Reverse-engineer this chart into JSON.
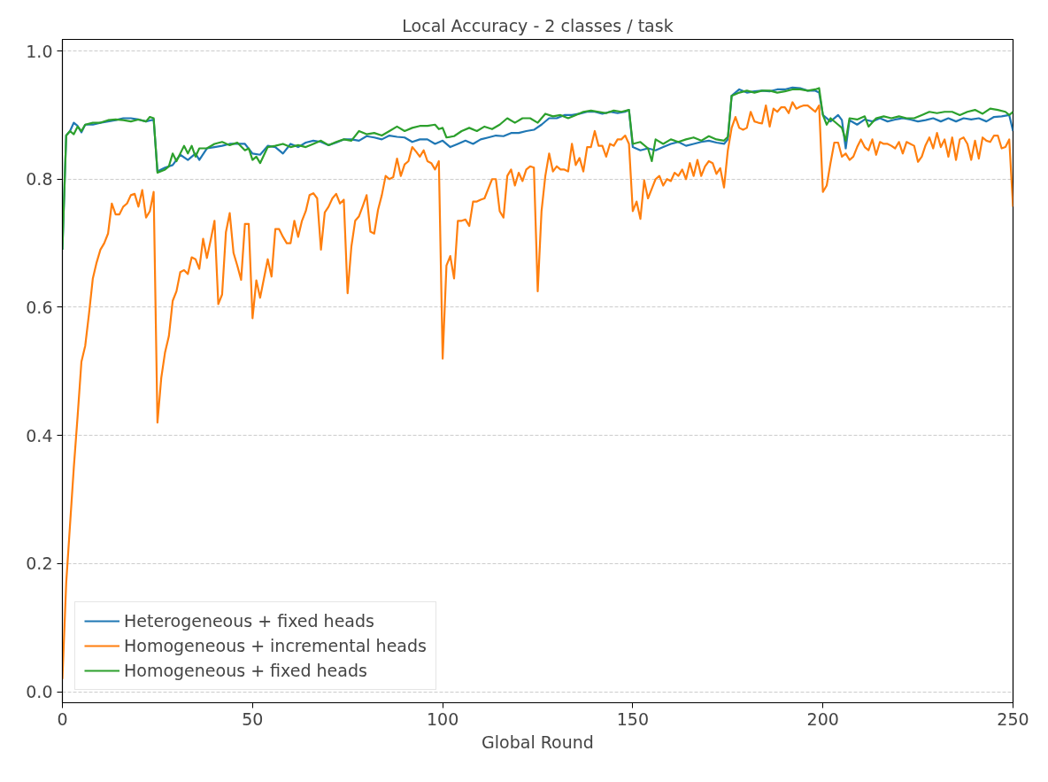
{
  "chart_data": {
    "type": "line",
    "title": "Local Accuracy - 2 classes / task",
    "xlabel": "Global Round",
    "xlim": [
      0,
      250
    ],
    "xticks": [
      0,
      50,
      100,
      150,
      200,
      250
    ],
    "ylim": [
      -0.017,
      1.018
    ],
    "yticks": [
      {
        "value": 0,
        "label": "0.0"
      },
      {
        "value": 0.2,
        "label": "0.2"
      },
      {
        "value": 0.4,
        "label": "0.4"
      },
      {
        "value": 0.6,
        "label": "0.6"
      },
      {
        "value": 0.8,
        "label": "0.8"
      },
      {
        "value": 1.0,
        "label": "1.0"
      }
    ],
    "grid": "y",
    "legend": "bottom left",
    "line_style": "solid",
    "series": [
      {
        "name": "Heterogeneous + fixed heads",
        "color": "#1f77b4",
        "x": [
          0,
          1,
          2,
          3,
          4,
          5,
          6,
          8,
          10,
          12,
          14,
          16,
          18,
          20,
          22,
          24,
          25,
          27,
          29,
          31,
          33,
          35,
          36,
          38,
          40,
          42,
          44,
          46,
          48,
          50,
          52,
          54,
          56,
          58,
          60,
          62,
          64,
          66,
          68,
          70,
          72,
          74,
          76,
          78,
          80,
          82,
          84,
          86,
          88,
          90,
          92,
          94,
          96,
          98,
          100,
          102,
          104,
          106,
          108,
          110,
          112,
          114,
          116,
          118,
          120,
          122,
          124,
          126,
          128,
          130,
          132,
          134,
          136,
          138,
          140,
          142,
          144,
          146,
          148,
          149,
          150,
          152,
          154,
          156,
          158,
          160,
          162,
          164,
          166,
          168,
          170,
          172,
          174,
          175,
          176,
          178,
          180,
          182,
          184,
          186,
          188,
          190,
          192,
          194,
          196,
          198,
          199,
          200,
          202,
          204,
          205,
          206,
          207,
          209,
          211,
          213,
          215,
          217,
          219,
          221,
          223,
          225,
          227,
          229,
          231,
          233,
          235,
          237,
          239,
          241,
          243,
          245,
          247,
          249,
          250
        ],
        "values": [
          0.69,
          0.868,
          0.875,
          0.888,
          0.883,
          0.873,
          0.885,
          0.885,
          0.888,
          0.89,
          0.892,
          0.895,
          0.895,
          0.893,
          0.89,
          0.893,
          0.812,
          0.818,
          0.822,
          0.838,
          0.83,
          0.84,
          0.83,
          0.848,
          0.85,
          0.852,
          0.855,
          0.855,
          0.855,
          0.84,
          0.838,
          0.852,
          0.85,
          0.84,
          0.855,
          0.85,
          0.857,
          0.86,
          0.858,
          0.853,
          0.857,
          0.862,
          0.862,
          0.86,
          0.867,
          0.865,
          0.862,
          0.868,
          0.866,
          0.865,
          0.858,
          0.862,
          0.862,
          0.855,
          0.86,
          0.85,
          0.855,
          0.86,
          0.855,
          0.862,
          0.865,
          0.868,
          0.867,
          0.872,
          0.872,
          0.875,
          0.877,
          0.885,
          0.895,
          0.895,
          0.9,
          0.9,
          0.902,
          0.905,
          0.905,
          0.902,
          0.905,
          0.903,
          0.905,
          0.908,
          0.85,
          0.845,
          0.848,
          0.845,
          0.85,
          0.855,
          0.858,
          0.852,
          0.855,
          0.858,
          0.86,
          0.857,
          0.855,
          0.862,
          0.93,
          0.94,
          0.935,
          0.937,
          0.938,
          0.937,
          0.94,
          0.94,
          0.943,
          0.942,
          0.938,
          0.938,
          0.935,
          0.9,
          0.89,
          0.9,
          0.892,
          0.848,
          0.892,
          0.885,
          0.893,
          0.89,
          0.895,
          0.89,
          0.893,
          0.895,
          0.893,
          0.89,
          0.892,
          0.895,
          0.89,
          0.895,
          0.89,
          0.895,
          0.893,
          0.895,
          0.89,
          0.897,
          0.898,
          0.9,
          0.875
        ]
      },
      {
        "name": "Homogeneous + incremental heads",
        "color": "#ff7f0e",
        "x": [
          0,
          1,
          2,
          3,
          4,
          5,
          6,
          7,
          8,
          9,
          10,
          11,
          12,
          13,
          14,
          15,
          16,
          17,
          18,
          19,
          20,
          21,
          22,
          23,
          24,
          25,
          26,
          27,
          28,
          29,
          30,
          31,
          32,
          33,
          34,
          35,
          36,
          37,
          38,
          39,
          40,
          41,
          42,
          43,
          44,
          45,
          46,
          47,
          48,
          49,
          50,
          51,
          52,
          53,
          54,
          55,
          56,
          57,
          58,
          59,
          60,
          61,
          62,
          63,
          64,
          65,
          66,
          67,
          68,
          69,
          70,
          71,
          72,
          73,
          74,
          75,
          76,
          77,
          78,
          79,
          80,
          81,
          82,
          83,
          84,
          85,
          86,
          87,
          88,
          89,
          90,
          91,
          92,
          93,
          94,
          95,
          96,
          97,
          98,
          99,
          100,
          101,
          102,
          103,
          104,
          105,
          106,
          107,
          108,
          109,
          110,
          111,
          112,
          113,
          114,
          115,
          116,
          117,
          118,
          119,
          120,
          121,
          122,
          123,
          124,
          125,
          126,
          127,
          128,
          129,
          130,
          131,
          132,
          133,
          134,
          135,
          136,
          137,
          138,
          139,
          140,
          141,
          142,
          143,
          144,
          145,
          146,
          147,
          148,
          149,
          150,
          151,
          152,
          153,
          154,
          155,
          156,
          157,
          158,
          159,
          160,
          161,
          162,
          163,
          164,
          165,
          166,
          167,
          168,
          169,
          170,
          171,
          172,
          173,
          174,
          175,
          176,
          177,
          178,
          179,
          180,
          181,
          182,
          183,
          184,
          185,
          186,
          187,
          188,
          189,
          190,
          191,
          192,
          193,
          194,
          195,
          196,
          197,
          198,
          199,
          200,
          201,
          202,
          203,
          204,
          205,
          206,
          207,
          208,
          209,
          210,
          211,
          212,
          213,
          214,
          215,
          216,
          217,
          218,
          219,
          220,
          221,
          222,
          223,
          224,
          225,
          226,
          227,
          228,
          229,
          230,
          231,
          232,
          233,
          234,
          235,
          236,
          237,
          238,
          239,
          240,
          241,
          242,
          243,
          244,
          245,
          246,
          247,
          248,
          249,
          250
        ],
        "values": [
          0.02,
          0.17,
          0.26,
          0.35,
          0.43,
          0.515,
          0.54,
          0.59,
          0.645,
          0.67,
          0.69,
          0.7,
          0.715,
          0.762,
          0.745,
          0.745,
          0.757,
          0.762,
          0.775,
          0.777,
          0.757,
          0.783,
          0.74,
          0.75,
          0.78,
          0.42,
          0.49,
          0.53,
          0.555,
          0.61,
          0.625,
          0.655,
          0.658,
          0.652,
          0.678,
          0.675,
          0.66,
          0.707,
          0.677,
          0.705,
          0.735,
          0.605,
          0.62,
          0.717,
          0.747,
          0.685,
          0.665,
          0.643,
          0.73,
          0.73,
          0.583,
          0.642,
          0.615,
          0.645,
          0.675,
          0.648,
          0.722,
          0.722,
          0.71,
          0.7,
          0.7,
          0.735,
          0.71,
          0.735,
          0.75,
          0.775,
          0.778,
          0.77,
          0.69,
          0.748,
          0.757,
          0.77,
          0.777,
          0.762,
          0.768,
          0.622,
          0.695,
          0.735,
          0.742,
          0.758,
          0.775,
          0.718,
          0.715,
          0.752,
          0.775,
          0.805,
          0.8,
          0.803,
          0.832,
          0.805,
          0.823,
          0.828,
          0.85,
          0.843,
          0.835,
          0.845,
          0.828,
          0.825,
          0.815,
          0.828,
          0.52,
          0.665,
          0.68,
          0.645,
          0.735,
          0.735,
          0.737,
          0.727,
          0.765,
          0.765,
          0.768,
          0.77,
          0.785,
          0.8,
          0.8,
          0.75,
          0.74,
          0.805,
          0.815,
          0.79,
          0.81,
          0.797,
          0.815,
          0.82,
          0.818,
          0.625,
          0.75,
          0.805,
          0.84,
          0.812,
          0.82,
          0.815,
          0.815,
          0.812,
          0.855,
          0.822,
          0.833,
          0.812,
          0.85,
          0.85,
          0.875,
          0.852,
          0.852,
          0.835,
          0.855,
          0.852,
          0.862,
          0.862,
          0.868,
          0.855,
          0.75,
          0.765,
          0.738,
          0.798,
          0.77,
          0.785,
          0.8,
          0.805,
          0.79,
          0.8,
          0.797,
          0.81,
          0.805,
          0.815,
          0.8,
          0.825,
          0.805,
          0.83,
          0.805,
          0.82,
          0.828,
          0.825,
          0.808,
          0.817,
          0.787,
          0.845,
          0.88,
          0.897,
          0.88,
          0.877,
          0.88,
          0.905,
          0.89,
          0.888,
          0.887,
          0.915,
          0.882,
          0.91,
          0.905,
          0.912,
          0.912,
          0.903,
          0.92,
          0.91,
          0.913,
          0.915,
          0.915,
          0.91,
          0.905,
          0.915,
          0.78,
          0.79,
          0.825,
          0.857,
          0.857,
          0.835,
          0.84,
          0.83,
          0.835,
          0.85,
          0.862,
          0.85,
          0.845,
          0.862,
          0.838,
          0.858,
          0.855,
          0.855,
          0.852,
          0.848,
          0.858,
          0.84,
          0.858,
          0.855,
          0.852,
          0.827,
          0.835,
          0.853,
          0.865,
          0.848,
          0.872,
          0.85,
          0.862,
          0.835,
          0.865,
          0.83,
          0.862,
          0.865,
          0.855,
          0.83,
          0.86,
          0.832,
          0.865,
          0.86,
          0.858,
          0.868,
          0.868,
          0.848,
          0.85,
          0.862,
          0.757
        ]
      },
      {
        "name": "Homogeneous + fixed heads",
        "color": "#2ca02c",
        "x": [
          0,
          1,
          2,
          3,
          4,
          5,
          6,
          8,
          10,
          12,
          14,
          16,
          18,
          20,
          22,
          23,
          24,
          25,
          27,
          28,
          29,
          30,
          32,
          33,
          34,
          35,
          36,
          38,
          40,
          42,
          44,
          46,
          48,
          49,
          50,
          51,
          52,
          54,
          56,
          58,
          60,
          62,
          64,
          66,
          68,
          70,
          72,
          74,
          76,
          78,
          80,
          82,
          84,
          86,
          88,
          90,
          92,
          94,
          96,
          98,
          99,
          100,
          101,
          103,
          105,
          107,
          109,
          111,
          113,
          115,
          117,
          119,
          121,
          123,
          125,
          127,
          129,
          131,
          133,
          135,
          137,
          139,
          141,
          143,
          145,
          147,
          149,
          150,
          152,
          154,
          155,
          156,
          158,
          160,
          162,
          164,
          166,
          168,
          170,
          172,
          174,
          175,
          176,
          178,
          180,
          182,
          184,
          186,
          188,
          190,
          192,
          194,
          196,
          198,
          199,
          200,
          201,
          202,
          204,
          205,
          206,
          207,
          209,
          211,
          212,
          214,
          216,
          218,
          220,
          222,
          224,
          226,
          228,
          230,
          232,
          234,
          236,
          238,
          240,
          242,
          244,
          246,
          248,
          249,
          250
        ],
        "values": [
          0.69,
          0.868,
          0.875,
          0.87,
          0.882,
          0.875,
          0.885,
          0.888,
          0.888,
          0.892,
          0.893,
          0.892,
          0.89,
          0.893,
          0.89,
          0.897,
          0.895,
          0.81,
          0.815,
          0.82,
          0.84,
          0.828,
          0.852,
          0.84,
          0.852,
          0.835,
          0.848,
          0.848,
          0.855,
          0.858,
          0.853,
          0.857,
          0.845,
          0.848,
          0.83,
          0.835,
          0.825,
          0.85,
          0.852,
          0.855,
          0.85,
          0.853,
          0.85,
          0.855,
          0.86,
          0.853,
          0.858,
          0.862,
          0.86,
          0.875,
          0.87,
          0.872,
          0.868,
          0.875,
          0.882,
          0.875,
          0.88,
          0.883,
          0.883,
          0.885,
          0.878,
          0.88,
          0.865,
          0.867,
          0.875,
          0.88,
          0.875,
          0.882,
          0.878,
          0.885,
          0.895,
          0.888,
          0.895,
          0.895,
          0.888,
          0.902,
          0.898,
          0.9,
          0.895,
          0.9,
          0.905,
          0.907,
          0.905,
          0.903,
          0.907,
          0.905,
          0.908,
          0.855,
          0.858,
          0.848,
          0.828,
          0.862,
          0.855,
          0.862,
          0.858,
          0.862,
          0.865,
          0.86,
          0.867,
          0.862,
          0.86,
          0.866,
          0.93,
          0.935,
          0.938,
          0.935,
          0.938,
          0.938,
          0.935,
          0.937,
          0.94,
          0.94,
          0.938,
          0.94,
          0.942,
          0.9,
          0.885,
          0.895,
          0.885,
          0.88,
          0.86,
          0.895,
          0.893,
          0.898,
          0.882,
          0.895,
          0.898,
          0.895,
          0.898,
          0.895,
          0.895,
          0.9,
          0.905,
          0.903,
          0.905,
          0.905,
          0.9,
          0.905,
          0.908,
          0.902,
          0.91,
          0.908,
          0.905,
          0.9,
          0.905
        ]
      }
    ]
  }
}
